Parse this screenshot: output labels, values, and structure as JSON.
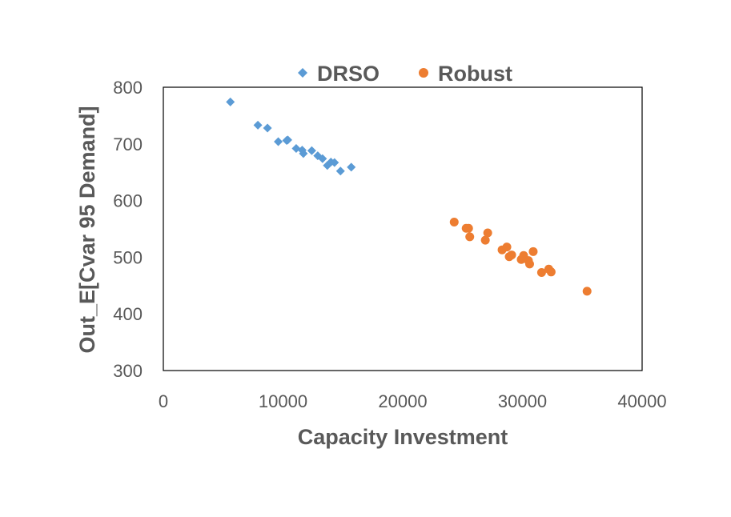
{
  "chart_data": {
    "type": "scatter",
    "title": "",
    "xlabel": "Capacity Investment",
    "ylabel": "Out_E[Cvar 95 Demand]",
    "xlim": [
      0,
      40000
    ],
    "ylim": [
      300,
      800
    ],
    "xticks": [
      0,
      10000,
      20000,
      30000,
      40000
    ],
    "yticks": [
      300,
      400,
      500,
      600,
      700,
      800
    ],
    "grid": false,
    "legend_position": "top",
    "series": [
      {
        "name": "DRSO",
        "marker": "diamond",
        "color": "#5b9bd5",
        "points": [
          [
            5600,
            774
          ],
          [
            7900,
            733
          ],
          [
            8700,
            728
          ],
          [
            9600,
            704
          ],
          [
            10300,
            706
          ],
          [
            10400,
            707
          ],
          [
            11100,
            692
          ],
          [
            11600,
            689
          ],
          [
            11700,
            683
          ],
          [
            12400,
            688
          ],
          [
            12900,
            679
          ],
          [
            13300,
            674
          ],
          [
            13700,
            662
          ],
          [
            14000,
            668
          ],
          [
            14300,
            667
          ],
          [
            14800,
            652
          ],
          [
            15700,
            659
          ]
        ]
      },
      {
        "name": "Robust",
        "marker": "circle",
        "color": "#ed7d31",
        "points": [
          [
            24300,
            562
          ],
          [
            25300,
            551
          ],
          [
            25500,
            551
          ],
          [
            25600,
            536
          ],
          [
            26900,
            530
          ],
          [
            27100,
            543
          ],
          [
            28300,
            513
          ],
          [
            28700,
            518
          ],
          [
            28900,
            501
          ],
          [
            29100,
            504
          ],
          [
            29900,
            496
          ],
          [
            30100,
            503
          ],
          [
            30500,
            494
          ],
          [
            30600,
            488
          ],
          [
            30900,
            510
          ],
          [
            31600,
            473
          ],
          [
            32200,
            479
          ],
          [
            32400,
            474
          ],
          [
            35400,
            440
          ]
        ]
      }
    ]
  }
}
